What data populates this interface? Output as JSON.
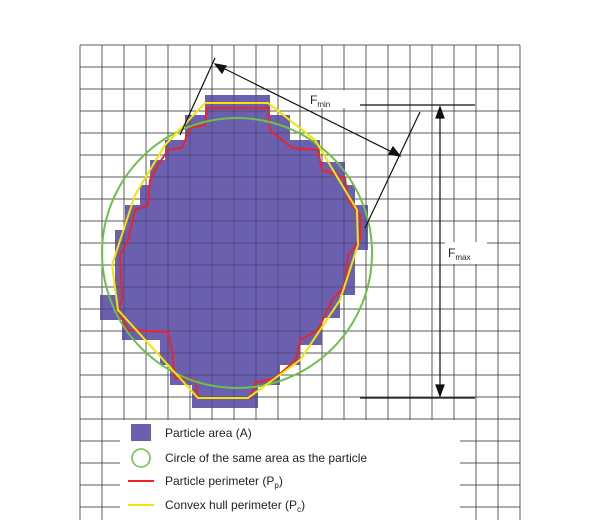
{
  "labels": {
    "f_min": {
      "main": "F",
      "sub": "min"
    },
    "f_max": {
      "main": "F",
      "sub": "max"
    }
  },
  "legend": [
    {
      "text": "Particle area (A)"
    },
    {
      "text": "Circle of the same area as the particle"
    },
    {
      "text": "Particle perimeter (P",
      "sub": "p",
      "end": ")"
    },
    {
      "text": "Convex hull perimeter (P",
      "sub": "c",
      "end": ")"
    }
  ]
}
